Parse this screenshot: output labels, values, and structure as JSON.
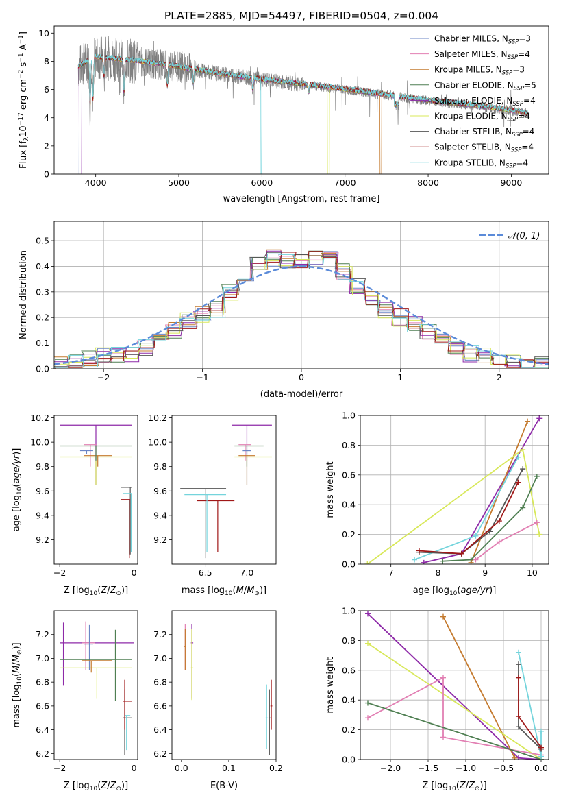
{
  "colors": {
    "chabrier_miles": "#6b86c6",
    "salpeter_miles": "#e27fb3",
    "kroupa_miles": "#c47a2e",
    "chabrier_elodie": "#4f7f52",
    "salpeter_elodie": "#8e2aa8",
    "kroupa_elodie": "#d8e85a",
    "chabrier_stelib": "#555555",
    "salpeter_stelib": "#a01818",
    "kroupa_stelib": "#74d4dc",
    "data": "#808080",
    "gauss": "#5b8bd9"
  },
  "legend_labels": [
    "Chabrier MILES, N",
    "Salpeter MILES, N",
    "Kroupa MILES, N",
    "Chabrier ELODIE, N",
    "Salpeter ELODIE, N",
    "Kroupa ELODIE, N",
    "Chabrier STELIB, N",
    "Salpeter STELIB, N",
    "Kroupa STELIB, N"
  ],
  "legend_sub": "SSP",
  "nssp": [
    "=3",
    "=4",
    "=3",
    "=5",
    "=4",
    "=4",
    "=4",
    "=4",
    "=4"
  ],
  "chart_data": [
    {
      "type": "line",
      "title": "PLATE=2885, MJD=54497, FIBERID=0504, z=0.004",
      "xlabel": "wavelength [Angstrom, rest frame]",
      "ylabel": "Flux [f",
      "xlim": [
        3500,
        9450
      ],
      "ylim": [
        0,
        10.5
      ],
      "xticks": [
        4000,
        5000,
        6000,
        7000,
        8000,
        9000
      ],
      "yticks": [
        0,
        2,
        4,
        6,
        8,
        10
      ],
      "continuum": {
        "x": [
          3790,
          4000,
          4500,
          5000,
          5500,
          6000,
          6500,
          7000,
          7500,
          8000,
          8500,
          9000,
          9200
        ],
        "y": [
          7.6,
          8.3,
          8.0,
          7.6,
          7.1,
          6.7,
          6.35,
          6.0,
          5.6,
          5.2,
          4.9,
          4.5,
          4.3
        ]
      },
      "legend": "top-right"
    },
    {
      "type": "line",
      "xlabel": "(data-model)/error",
      "ylabel": "Normed distribution",
      "xlim": [
        -2.5,
        2.5
      ],
      "ylim": [
        0,
        0.575
      ],
      "xticks": [
        -2,
        -1,
        0,
        1,
        2
      ],
      "yticks": [
        0.0,
        0.1,
        0.2,
        0.3,
        0.4,
        0.5
      ],
      "legend_label": "𝒩(0, 1)",
      "legend": "top-right",
      "histogram": [
        0.02,
        0.03,
        0.04,
        0.05,
        0.06,
        0.06,
        0.08,
        0.11,
        0.15,
        0.19,
        0.21,
        0.23,
        0.3,
        0.37,
        0.41,
        0.43,
        0.42,
        0.42,
        0.44,
        0.43,
        0.38,
        0.32,
        0.27,
        0.23,
        0.2,
        0.17,
        0.14,
        0.11,
        0.09,
        0.06,
        0.05,
        0.04,
        0.03,
        0.03,
        0.02
      ],
      "grid": true
    },
    {
      "type": "scatter",
      "xlabel": "Z [log",
      "ylabel": "age  [log",
      "xlim": [
        -2.15,
        0.1
      ],
      "ylim": [
        9.0,
        10.22
      ],
      "xticks": [
        -2,
        0
      ],
      "yticks": [
        9.2,
        9.4,
        9.6,
        9.8,
        10.0,
        10.2
      ],
      "points": [
        {
          "series": "Salpeter ELODIE",
          "x": -1.9,
          "y": 10.14
        },
        {
          "series": "Kroupa ELODIE",
          "x": -1.3,
          "y": 9.88
        },
        {
          "series": "Salpeter STELIB",
          "x": -0.25,
          "y": 9.53
        }
      ]
    },
    {
      "type": "scatter",
      "xlabel": "mass [log",
      "ylabel": "",
      "xlim": [
        6.1,
        7.35
      ],
      "ylim": [
        9.0,
        10.22
      ],
      "xticks": [
        6.5,
        7.0
      ],
      "yticks": [
        9.2,
        9.4,
        9.6,
        9.8,
        10.0,
        10.2
      ],
      "points": [
        {
          "series": "Chabrier STELIB",
          "x": 6.5,
          "y": 9.62
        },
        {
          "series": "Salpeter STELIB",
          "x": 6.65,
          "y": 9.52
        },
        {
          "series": "Salpeter ELODIE",
          "x": 7.0,
          "y": 10.14
        }
      ]
    },
    {
      "type": "line",
      "xlabel": "age  [log",
      "ylabel": "mass weight",
      "xlim": [
        6.35,
        10.35
      ],
      "ylim": [
        0,
        1.0
      ],
      "xticks": [
        7,
        8,
        9,
        10
      ],
      "yticks": [
        0.0,
        0.2,
        0.4,
        0.6,
        0.8,
        1.0
      ],
      "series": [
        {
          "key": "salpeter_elodie",
          "x": [
            7.7,
            8.5,
            10.15
          ],
          "y": [
            0.01,
            0.07,
            0.98
          ]
        },
        {
          "key": "kroupa_miles",
          "x": [
            8.7,
            9.9
          ],
          "y": [
            0.01,
            0.96
          ]
        },
        {
          "key": "kroupa_elodie",
          "x": [
            6.5,
            9.8,
            10.15
          ],
          "y": [
            0.0,
            0.77,
            0.2
          ]
        },
        {
          "key": "kroupa_stelib",
          "x": [
            7.5,
            8.8,
            9.7
          ],
          "y": [
            0.03,
            0.19,
            0.72
          ]
        },
        {
          "key": "chabrier_stelib",
          "x": [
            7.6,
            8.5,
            9.1,
            9.8
          ],
          "y": [
            0.08,
            0.07,
            0.22,
            0.64
          ]
        },
        {
          "key": "salpeter_stelib",
          "x": [
            7.6,
            8.5,
            9.3,
            9.7
          ],
          "y": [
            0.09,
            0.07,
            0.29,
            0.55
          ]
        },
        {
          "key": "chabrier_elodie",
          "x": [
            8.1,
            8.7,
            9.8,
            10.1
          ],
          "y": [
            0.02,
            0.03,
            0.38,
            0.59
          ]
        },
        {
          "key": "salpeter_miles",
          "x": [
            8.8,
            9.3,
            10.1
          ],
          "y": [
            0.03,
            0.15,
            0.28
          ]
        }
      ],
      "grid": true
    },
    {
      "type": "scatter",
      "xlabel": "Z [log",
      "ylabel": "mass [log",
      "xlim": [
        -2.15,
        0.1
      ],
      "ylim": [
        6.15,
        7.4
      ],
      "xticks": [
        -2,
        0
      ],
      "yticks": [
        6.2,
        6.4,
        6.6,
        6.8,
        7.0,
        7.2
      ],
      "points": [
        {
          "series": "Salpeter ELODIE",
          "x": -1.9,
          "y": 7.13
        },
        {
          "series": "Kroupa ELODIE",
          "x": -1.3,
          "y": 6.92
        },
        {
          "series": "Salpeter STELIB",
          "x": -0.25,
          "y": 6.64
        }
      ]
    },
    {
      "type": "scatter",
      "xlabel": "E(B-V)",
      "ylabel": "",
      "xlim": [
        -0.02,
        0.2
      ],
      "ylim": [
        6.15,
        7.4
      ],
      "xticks": [
        0.0,
        0.1,
        0.2
      ],
      "yticks": [
        6.2,
        6.4,
        6.6,
        6.8,
        7.0,
        7.2
      ],
      "points": [
        {
          "series": "Kroupa STELIB",
          "x": 0.18,
          "y": 6.5
        },
        {
          "series": "Salpeter STELIB",
          "x": 0.19,
          "y": 6.6
        },
        {
          "series": "Salpeter ELODIE",
          "x": 0.02,
          "y": 7.13
        }
      ]
    },
    {
      "type": "line",
      "xlabel": "Z [log",
      "ylabel": "mass weight",
      "xlim": [
        -2.4,
        0.1
      ],
      "ylim": [
        0,
        1.0
      ],
      "xticks": [
        -2.0,
        -1.5,
        -1.0,
        -0.5,
        0.0
      ],
      "yticks": [
        0.0,
        0.2,
        0.4,
        0.6,
        0.8,
        1.0
      ],
      "series": [
        {
          "key": "salpeter_elodie",
          "x": [
            -2.3,
            -0.3,
            0.0
          ],
          "y": [
            0.98,
            0.01,
            0.0
          ]
        },
        {
          "key": "kroupa_miles",
          "x": [
            -1.3,
            -0.35
          ],
          "y": [
            0.96,
            0.01
          ]
        },
        {
          "key": "kroupa_elodie",
          "x": [
            -2.3,
            0.0
          ],
          "y": [
            0.78,
            0.0
          ]
        },
        {
          "key": "salpeter_miles",
          "x": [
            -2.3,
            -1.3,
            -1.3,
            0.0
          ],
          "y": [
            0.28,
            0.55,
            0.15,
            0.03
          ]
        },
        {
          "key": "chabrier_elodie",
          "x": [
            -2.3,
            0.0
          ],
          "y": [
            0.38,
            0.0
          ]
        },
        {
          "key": "kroupa_stelib",
          "x": [
            -0.3,
            0.0,
            0.0
          ],
          "y": [
            0.72,
            0.02,
            0.19
          ]
        },
        {
          "key": "chabrier_stelib",
          "x": [
            -0.3,
            -0.3,
            0.0
          ],
          "y": [
            0.64,
            0.22,
            0.07
          ]
        },
        {
          "key": "salpeter_stelib",
          "x": [
            -0.3,
            -0.3,
            0.0
          ],
          "y": [
            0.55,
            0.29,
            0.08
          ]
        }
      ],
      "grid": true
    }
  ]
}
